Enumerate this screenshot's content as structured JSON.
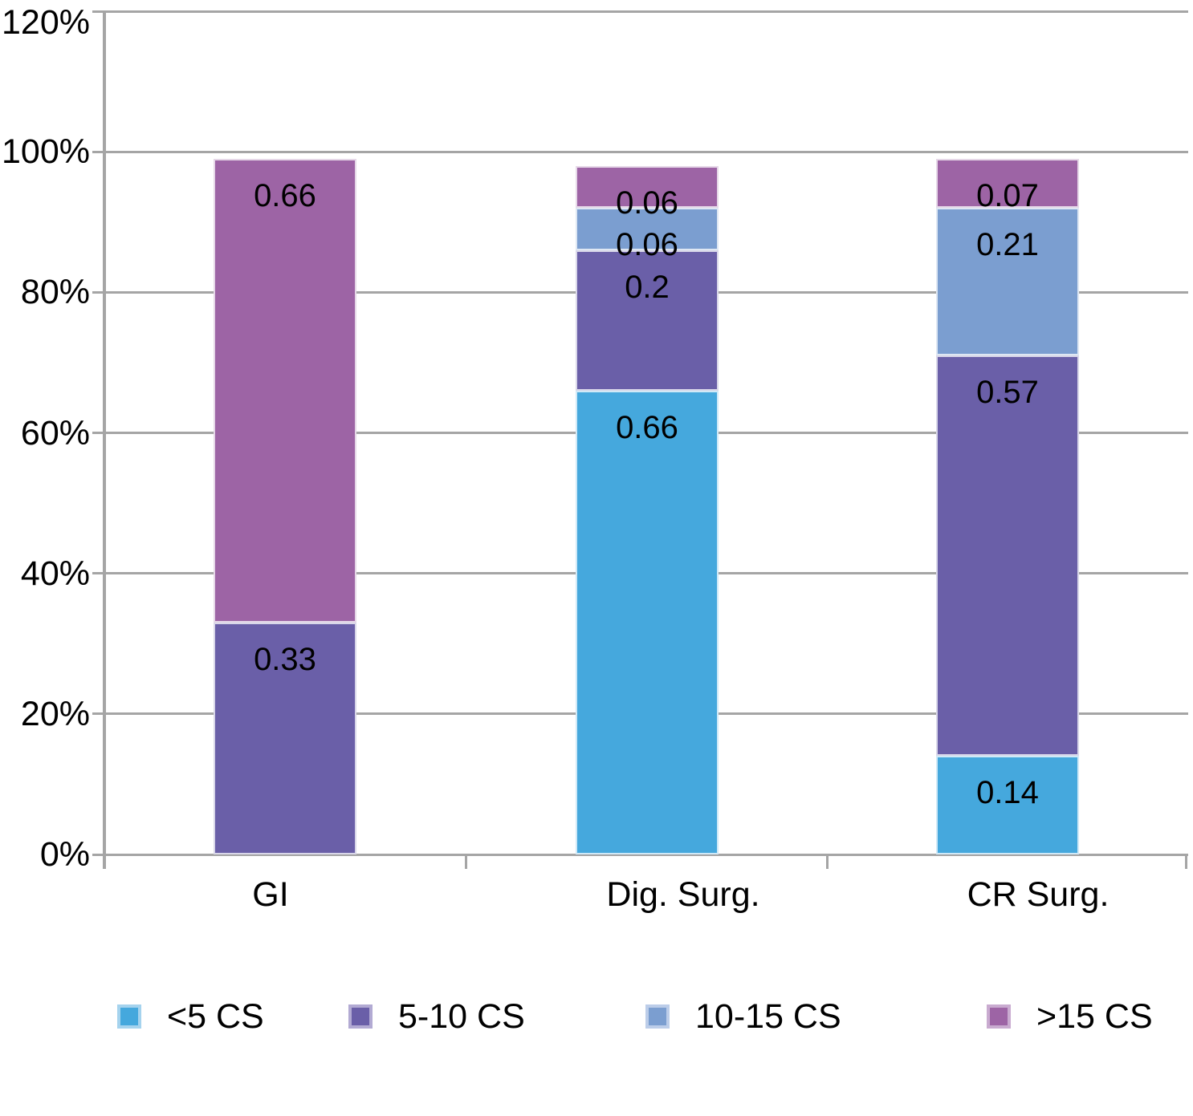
{
  "chart_data": {
    "type": "bar",
    "subtype": "stacked-percentage-column",
    "title": "",
    "categories": [
      "GI",
      "Dig. Surg.",
      "CR Surg."
    ],
    "series": [
      {
        "name": "<5 CS",
        "color": "#45a8dd",
        "key_halo": "#a5d3ee",
        "values": [
          0,
          0.66,
          0.14
        ],
        "labels": [
          "",
          "0.66",
          "0.14"
        ]
      },
      {
        "name": "5-10 CS",
        "color": "#6a5fa8",
        "key_halo": "#b2aad3",
        "values": [
          0.33,
          0.2,
          0.57
        ],
        "labels": [
          "0.33",
          "0.2",
          "0.57"
        ]
      },
      {
        "name": "10-15 CS",
        "color": "#7b9ed0",
        "key_halo": "#bccde9",
        "values": [
          0,
          0.06,
          0.21
        ],
        "labels": [
          "",
          "0.06",
          "0.21"
        ]
      },
      {
        "name": ">15 CS",
        "color": "#9d64a5",
        "key_halo": "#c9abd0",
        "values": [
          0.66,
          0.06,
          0.07
        ],
        "labels": [
          "0.66",
          "0.06",
          "0.07"
        ]
      }
    ],
    "y_axis": {
      "min": 0,
      "max": 1.2,
      "step": 0.2,
      "ticks": [
        "0%",
        "20%",
        "40%",
        "60%",
        "80%",
        "100%",
        "120%"
      ]
    },
    "grid": true,
    "legend_position": "bottom",
    "value_label_position": "inside-end",
    "colors": {
      "gridline": "#a5a5a5",
      "axis": "#a5a5a5",
      "text": "#000000",
      "background": "#ffffff"
    }
  }
}
